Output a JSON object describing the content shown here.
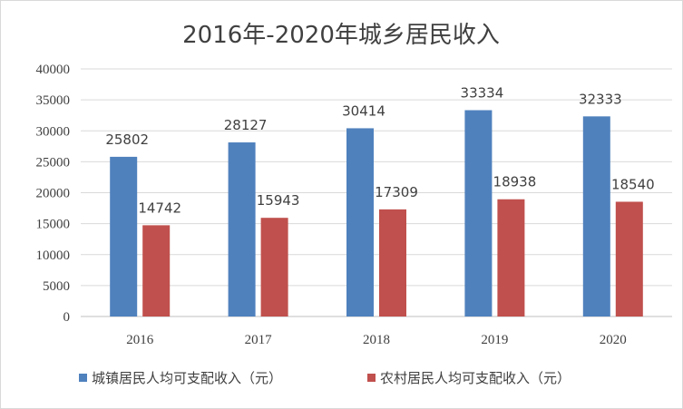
{
  "chart_data": {
    "type": "bar",
    "title": "2016年-2020年城乡居民收入",
    "categories": [
      "2016",
      "2017",
      "2018",
      "2019",
      "2020"
    ],
    "series": [
      {
        "name": "城镇居民人均可支配收入（元）",
        "values": [
          25802,
          28127,
          30414,
          33334,
          32333
        ],
        "color": "#4f81bd"
      },
      {
        "name": "农村居民人均可支配收入（元）",
        "values": [
          14742,
          15943,
          17309,
          18938,
          18540
        ],
        "color": "#c0504d"
      }
    ],
    "ylim": [
      0,
      40000
    ],
    "yticks": [
      0,
      5000,
      10000,
      15000,
      20000,
      25000,
      30000,
      35000,
      40000
    ],
    "grid": true,
    "legend_position": "bottom",
    "data_labels": true
  }
}
